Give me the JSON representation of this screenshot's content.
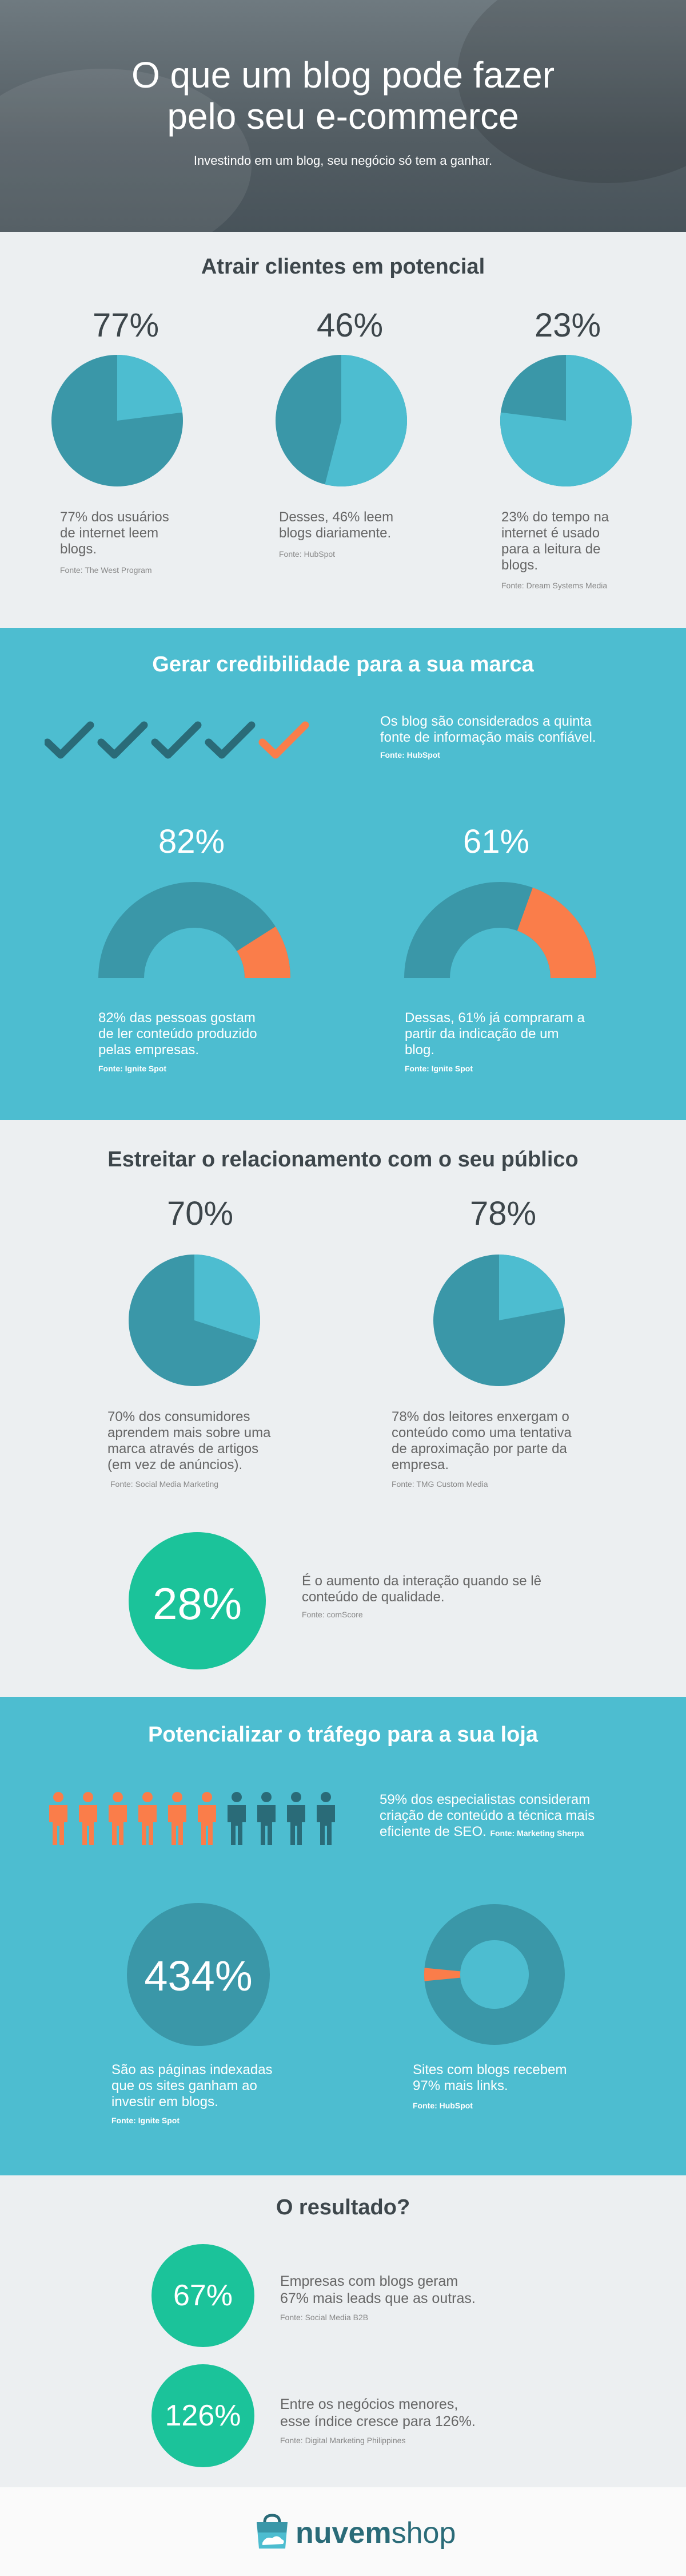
{
  "hero": {
    "title_line1": "O que um blog pode fazer",
    "title_line2": "pelo seu e-commerce",
    "subtitle": "Investindo em um blog, seu negócio só tem a ganhar."
  },
  "section1": {
    "title": "Atrair clientes em potencial",
    "stats": [
      {
        "pct": "77%",
        "value": 77,
        "text": [
          "77% dos usuários",
          "de internet leem",
          "blogs."
        ],
        "source": "Fonte: The West Program"
      },
      {
        "pct": "46%",
        "value": 46,
        "text": [
          "Desses, 46% leem",
          "blogs diariamente."
        ],
        "source": "Fonte: HubSpot"
      },
      {
        "pct": "23%",
        "value": 23,
        "text": [
          "23% do  tempo na",
          "internet é usado",
          "para a leitura de",
          "blogs."
        ],
        "source": "Fonte: Dream Systems Media"
      }
    ]
  },
  "section2": {
    "title": "Gerar credibilidade para a sua marca",
    "checks_total": 5,
    "checks_highlight": 5,
    "check_text": [
      "Os blog são considerados a quinta",
      "fonte de informação mais confiável."
    ],
    "check_source": "Fonte: HubSpot",
    "stats": [
      {
        "pct": "82%",
        "value": 82,
        "text": [
          "82% das pessoas gostam",
          "de ler conteúdo produzido",
          "pelas empresas."
        ],
        "source": "Fonte: Ignite Spot"
      },
      {
        "pct": "61%",
        "value": 61,
        "text": [
          "Dessas, 61% já compraram a",
          "partir da indicação de um",
          "blog."
        ],
        "source": "Fonte: Ignite Spot"
      }
    ]
  },
  "section3": {
    "title": "Estreitar o relacionamento com o seu público",
    "stats": [
      {
        "pct": "70%",
        "value": 70,
        "text": [
          "70% dos consumidores",
          "aprendem mais sobre uma",
          "marca através de artigos",
          "(em vez de anúncios)."
        ],
        "source": "Fonte: Social Media Marketing"
      },
      {
        "pct": "78%",
        "value": 78,
        "text": [
          "78% dos leitores enxergam o",
          "conteúdo como uma tentativa",
          "de aproximação por parte da",
          "empresa."
        ],
        "source": "Fonte: TMG Custom Media"
      }
    ],
    "highlight": {
      "pct": "28%",
      "text": [
        "É o aumento da interação quando se lê",
        "conteúdo de qualidade."
      ],
      "source": "Fonte: comScore"
    }
  },
  "section4": {
    "title": "Potencializar o tráfego para a sua loja",
    "people_total": 10,
    "people_highlight": 6,
    "people_text": [
      "59% dos especialistas consideram",
      "criação de conteúdo a técnica mais",
      "eficiente de SEO."
    ],
    "people_source": "Fonte: Marketing Sherpa",
    "stat_left": {
      "pct": "434%",
      "text": [
        "São as páginas indexadas",
        "que os sites ganham ao",
        "investir em blogs."
      ],
      "source": "Fonte: Ignite Spot"
    },
    "stat_right": {
      "value": 97,
      "text": [
        "Sites com blogs recebem",
        "97% mais links."
      ],
      "source": "Fonte: HubSpot"
    }
  },
  "section5": {
    "title": "O resultado?",
    "items": [
      {
        "pct": "67%",
        "text": [
          "Empresas com blogs geram",
          "67% mais leads que as outras."
        ],
        "source": "Fonte: Social Media B2B"
      },
      {
        "pct": "126%",
        "text": [
          "Entre os negócios menores,",
          "esse índice cresce para 126%."
        ],
        "source": "Fonte: Digital Marketing Philippines"
      }
    ]
  },
  "footer": {
    "brand_bold": "nuvem",
    "brand_light": "shop"
  },
  "colors": {
    "teal_dark": "#3a97a8",
    "teal_light": "#4dbdd0",
    "orange": "#fa7d4a",
    "green": "#1bc39a",
    "navy": "#2a6b78"
  }
}
